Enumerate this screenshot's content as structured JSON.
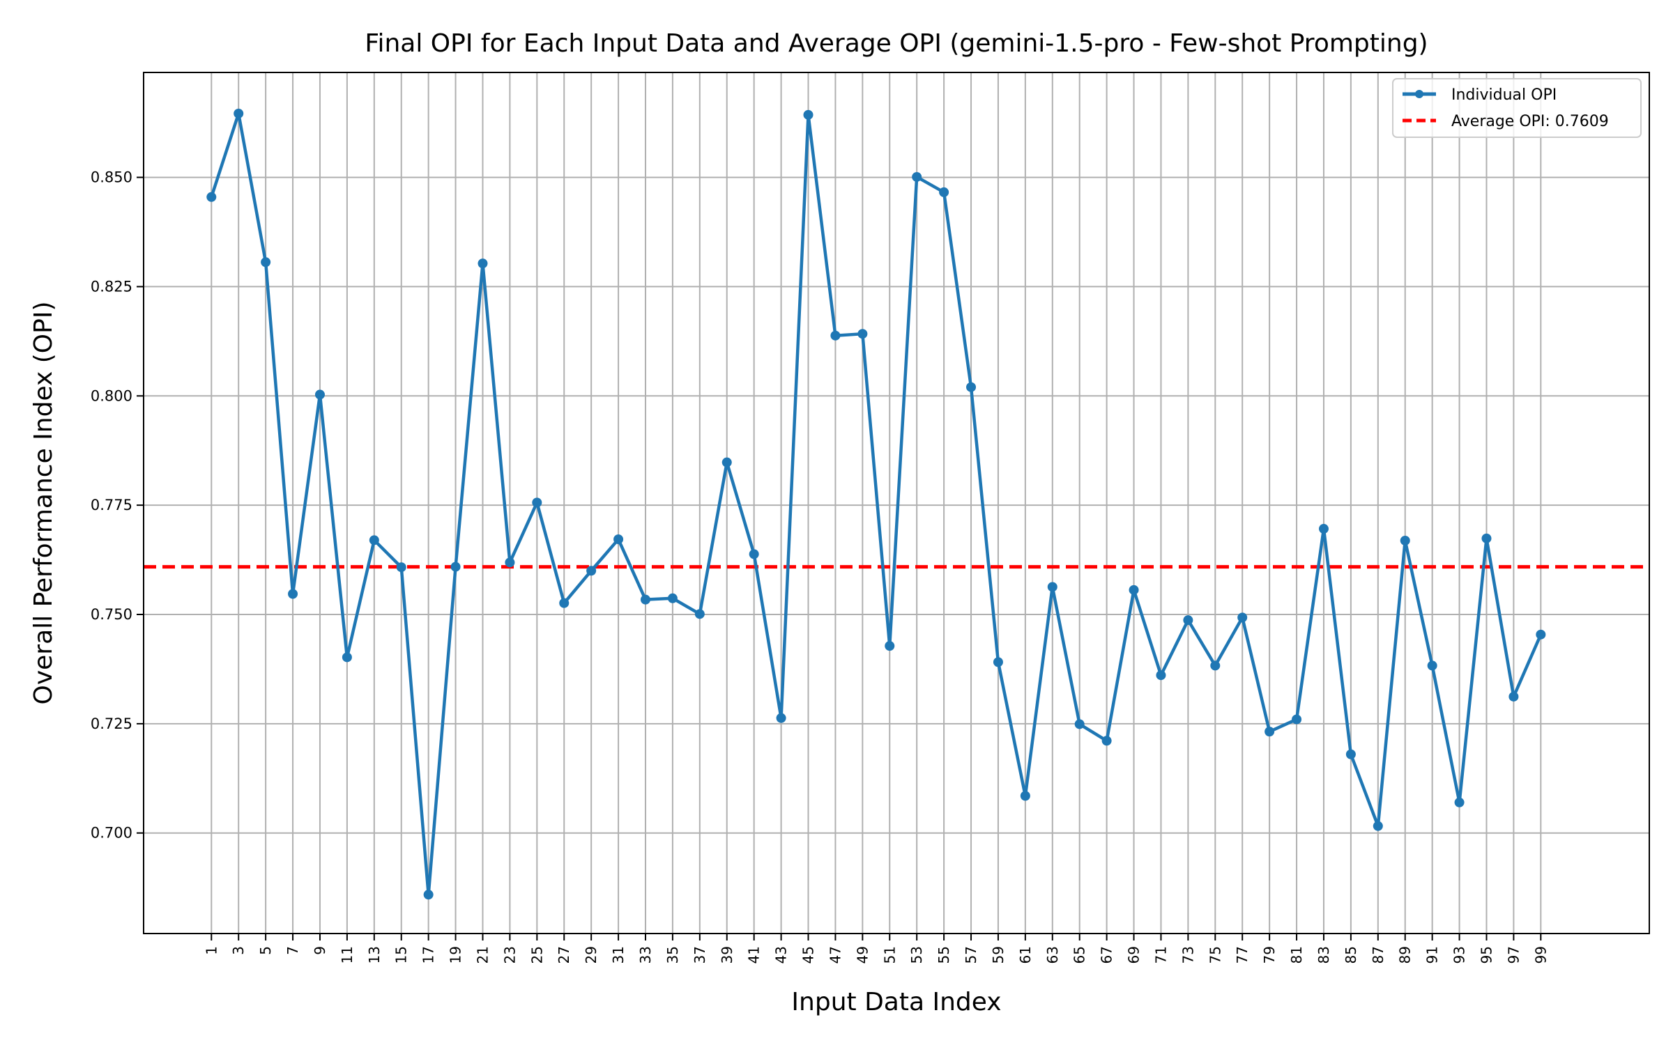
{
  "chart_data": {
    "type": "line",
    "title": "Final OPI for Each Input Data and Average OPI (gemini-1.5-pro - Few-shot Prompting)",
    "xlabel": "Input Data Index",
    "ylabel": "Overall Performance Index (OPI)",
    "x": [
      1,
      3,
      5,
      7,
      9,
      11,
      13,
      15,
      17,
      19,
      21,
      23,
      25,
      27,
      29,
      31,
      33,
      35,
      37,
      39,
      41,
      43,
      45,
      47,
      49,
      51,
      53,
      55,
      57,
      59,
      61,
      63,
      65,
      67,
      69,
      71,
      73,
      75,
      77,
      79,
      81,
      83,
      85,
      87,
      89,
      91,
      93,
      95,
      97,
      99
    ],
    "xlim": [
      -4,
      107
    ],
    "ylim": [
      0.677,
      0.874
    ],
    "yticks": [
      0.7,
      0.725,
      0.75,
      0.775,
      0.8,
      0.825,
      0.85
    ],
    "ytick_labels": [
      "0.700",
      "0.725",
      "0.750",
      "0.775",
      "0.800",
      "0.825",
      "0.850"
    ],
    "xtick_labels": [
      "1",
      "3",
      "5",
      "7",
      "9",
      "11",
      "13",
      "15",
      "17",
      "19",
      "21",
      "23",
      "25",
      "27",
      "29",
      "31",
      "33",
      "35",
      "37",
      "39",
      "41",
      "43",
      "45",
      "47",
      "49",
      "51",
      "53",
      "55",
      "57",
      "59",
      "61",
      "63",
      "65",
      "67",
      "69",
      "71",
      "73",
      "75",
      "77",
      "79",
      "81",
      "83",
      "85",
      "87",
      "89",
      "91",
      "93",
      "95",
      "97",
      "99"
    ],
    "grid": true,
    "legend_position": "top-right",
    "series": [
      {
        "name": "Individual OPI",
        "color": "#1f77b4",
        "values": [
          0.8455,
          0.8646,
          0.8306,
          0.7547,
          0.8003,
          0.7402,
          0.767,
          0.7608,
          0.6859,
          0.7609,
          0.8303,
          0.7619,
          0.7756,
          0.7526,
          0.76,
          0.7672,
          0.7534,
          0.7537,
          0.7501,
          0.7848,
          0.7638,
          0.7263,
          0.8643,
          0.8138,
          0.8142,
          0.7428,
          0.8501,
          0.8466,
          0.802,
          0.7391,
          0.7085,
          0.7563,
          0.7249,
          0.7211,
          0.7556,
          0.7361,
          0.7487,
          0.7383,
          0.7493,
          0.7232,
          0.726,
          0.7696,
          0.718,
          0.7016,
          0.7669,
          0.7383,
          0.707,
          0.7674,
          0.7312,
          0.7454
        ]
      }
    ],
    "average": {
      "name": "Average OPI: 0.7609",
      "value": 0.7609,
      "color": "#ff0000"
    }
  }
}
